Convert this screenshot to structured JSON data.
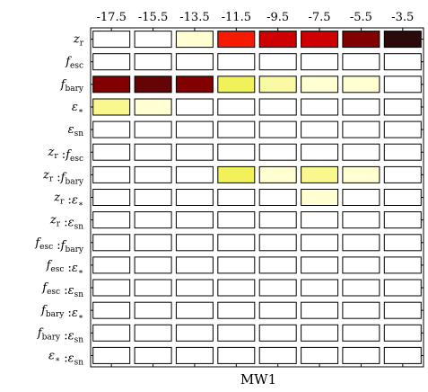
{
  "chart_data": {
    "type": "heatmap",
    "title": "",
    "xlabel": "MW1",
    "ylabel": "",
    "x_ticks": [
      "-17.5",
      "-15.5",
      "-13.5",
      "-11.5",
      "-9.5",
      "-7.5",
      "-5.5",
      "-3.5"
    ],
    "rows": [
      "zr",
      "fesc",
      "fbary",
      "ε*",
      "εsn",
      "zr : fesc",
      "zr : fbary",
      "zr : ε*",
      "zr : εsn",
      "fesc : fbary",
      "fesc : ε*",
      "fesc : εsn",
      "fbary : ε*",
      "fbary : εsn",
      "ε* : εsn"
    ],
    "colormap": [
      "#ffffff",
      "#ffffcc",
      "#f0f050",
      "#ff4400",
      "#ee0000",
      "#8b0000",
      "#2a0a0a"
    ],
    "values": [
      [
        0.0,
        0.0,
        0.15,
        0.6,
        0.72,
        0.72,
        0.85,
        1.0
      ],
      [
        0,
        0,
        0,
        0,
        0,
        0,
        0,
        0
      ],
      [
        0.85,
        0.9,
        0.85,
        0.32,
        0.22,
        0.15,
        0.15,
        0.0
      ],
      [
        0.25,
        0.15,
        0,
        0,
        0,
        0,
        0,
        0
      ],
      [
        0,
        0,
        0,
        0,
        0,
        0,
        0,
        0
      ],
      [
        0,
        0,
        0,
        0,
        0,
        0,
        0,
        0
      ],
      [
        0,
        0,
        0,
        0.32,
        0.15,
        0.25,
        0.15,
        0
      ],
      [
        0,
        0,
        0,
        0,
        0,
        0.15,
        0,
        0
      ],
      [
        0,
        0,
        0,
        0,
        0,
        0,
        0,
        0
      ],
      [
        0,
        0,
        0,
        0,
        0,
        0,
        0,
        0
      ],
      [
        0,
        0,
        0,
        0,
        0,
        0,
        0,
        0
      ],
      [
        0,
        0,
        0,
        0,
        0,
        0,
        0,
        0
      ],
      [
        0,
        0,
        0,
        0,
        0,
        0,
        0,
        0
      ],
      [
        0,
        0,
        0,
        0,
        0,
        0,
        0,
        0
      ],
      [
        0,
        0,
        0,
        0,
        0,
        0,
        0,
        0
      ]
    ],
    "grid": false,
    "legend": "none"
  }
}
